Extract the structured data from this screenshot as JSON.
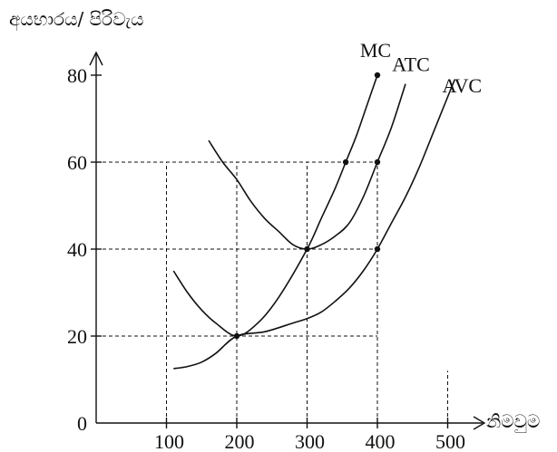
{
  "chart_data": {
    "type": "line",
    "title": "",
    "xlabel": "නිමවුම",
    "ylabel": "අයභාරය/ පිරිවැය",
    "x_ticks": [
      "100",
      "200",
      "300",
      "400",
      "500"
    ],
    "y_ticks": [
      "0",
      "20",
      "40",
      "60",
      "80"
    ],
    "xlim": [
      0,
      550
    ],
    "ylim": [
      0,
      85
    ],
    "grid": false,
    "series": [
      {
        "name": "MC",
        "points": [
          [
            110,
            35
          ],
          [
            130,
            30
          ],
          [
            150,
            26
          ],
          [
            170,
            23
          ],
          [
            200,
            20
          ],
          [
            230,
            23
          ],
          [
            260,
            29
          ],
          [
            300,
            40
          ],
          [
            320,
            47
          ],
          [
            340,
            54
          ],
          [
            355,
            60
          ],
          [
            370,
            66
          ],
          [
            385,
            73
          ],
          [
            400,
            80
          ]
        ]
      },
      {
        "name": "ATC",
        "points": [
          [
            160,
            65
          ],
          [
            180,
            60
          ],
          [
            200,
            56
          ],
          [
            220,
            51
          ],
          [
            240,
            47
          ],
          [
            260,
            44
          ],
          [
            280,
            41
          ],
          [
            300,
            40
          ],
          [
            320,
            41
          ],
          [
            340,
            43
          ],
          [
            360,
            46
          ],
          [
            380,
            52
          ],
          [
            400,
            60
          ],
          [
            420,
            68
          ],
          [
            440,
            78
          ]
        ]
      },
      {
        "name": "AVC",
        "points": [
          [
            110,
            12.5
          ],
          [
            130,
            13
          ],
          [
            150,
            14
          ],
          [
            170,
            16
          ],
          [
            200,
            20
          ],
          [
            240,
            21
          ],
          [
            280,
            23
          ],
          [
            300,
            24
          ],
          [
            320,
            25.5
          ],
          [
            340,
            28
          ],
          [
            360,
            31
          ],
          [
            380,
            35
          ],
          [
            400,
            40
          ],
          [
            420,
            46
          ],
          [
            440,
            52
          ],
          [
            460,
            59
          ],
          [
            480,
            67
          ],
          [
            500,
            75
          ],
          [
            510,
            79
          ]
        ]
      }
    ],
    "points": [
      {
        "x": 200,
        "y": 20
      },
      {
        "x": 300,
        "y": 40
      },
      {
        "x": 355,
        "y": 60
      },
      {
        "x": 400,
        "y": 60
      },
      {
        "x": 400,
        "y": 40
      },
      {
        "x": 400,
        "y": 80
      }
    ],
    "guides": {
      "vertical": [
        {
          "x": 100,
          "y_top": 60
        },
        {
          "x": 200,
          "y_top": 60
        },
        {
          "x": 300,
          "y_top": 60
        },
        {
          "x": 400,
          "y_top": 60
        },
        {
          "x": 500,
          "y_top": 12
        }
      ],
      "horizontal": [
        {
          "y": 60,
          "x_end": 400
        },
        {
          "y": 40,
          "x_end": 400
        },
        {
          "y": 20,
          "x_end": 400
        }
      ]
    }
  }
}
